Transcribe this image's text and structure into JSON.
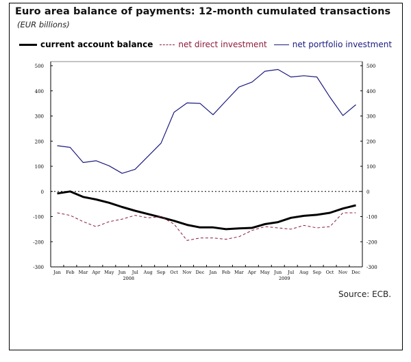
{
  "title": "Euro area balance of payments: 12-month cumulated transactions",
  "subtitle": "(EUR billions)",
  "source": "Source: ECB.",
  "colors": {
    "current_account": "#000000",
    "direct_investment": "#8b1a3a",
    "portfolio_investment": "#1a1a80"
  },
  "chart_data": {
    "type": "line",
    "title": "Euro area balance of payments: 12-month cumulated transactions",
    "ylabel": "EUR billions",
    "xlabel": "",
    "ylim": [
      -300,
      500
    ],
    "yticks": [
      500,
      400,
      300,
      200,
      100,
      0,
      -100,
      -200,
      -300
    ],
    "ytick_labels": [
      "500",
      "400",
      "300",
      "200",
      "100",
      "0",
      "-100",
      "-200",
      "-300"
    ],
    "years": [
      {
        "label": "2008",
        "start_index": 0
      },
      {
        "label": "2009",
        "start_index": 12
      }
    ],
    "categories": [
      "Jan",
      "Feb",
      "Mar",
      "Apr",
      "May",
      "Jun",
      "Jul",
      "Aug",
      "Sep",
      "Oct",
      "Nov",
      "Dec",
      "Jan",
      "Feb",
      "Mar",
      "Apr",
      "May",
      "Jun",
      "Jul",
      "Aug",
      "Sep",
      "Oct",
      "Nov",
      "Dec"
    ],
    "zero_line": "dotted",
    "legend_position": "top",
    "series": [
      {
        "name": "current account balance",
        "style": "thick-solid",
        "values": [
          -8,
          0,
          -22,
          -32,
          -45,
          -62,
          -77,
          -90,
          -103,
          -117,
          -133,
          -143,
          -143,
          -150,
          -147,
          -145,
          -130,
          -122,
          -105,
          -97,
          -93,
          -85,
          -68,
          -55
        ]
      },
      {
        "name": "net direct investment",
        "style": "dashed",
        "values": [
          -85,
          -95,
          -120,
          -140,
          -120,
          -110,
          -95,
          -105,
          -100,
          -130,
          -195,
          -185,
          -185,
          -190,
          -180,
          -155,
          -140,
          -145,
          -150,
          -135,
          -145,
          -140,
          -85,
          -85
        ]
      },
      {
        "name": "net portfolio investment",
        "style": "solid",
        "values": [
          182,
          175,
          115,
          122,
          102,
          72,
          88,
          140,
          192,
          315,
          352,
          350,
          305,
          360,
          415,
          435,
          478,
          485,
          455,
          460,
          455,
          375,
          302,
          345
        ]
      }
    ]
  }
}
